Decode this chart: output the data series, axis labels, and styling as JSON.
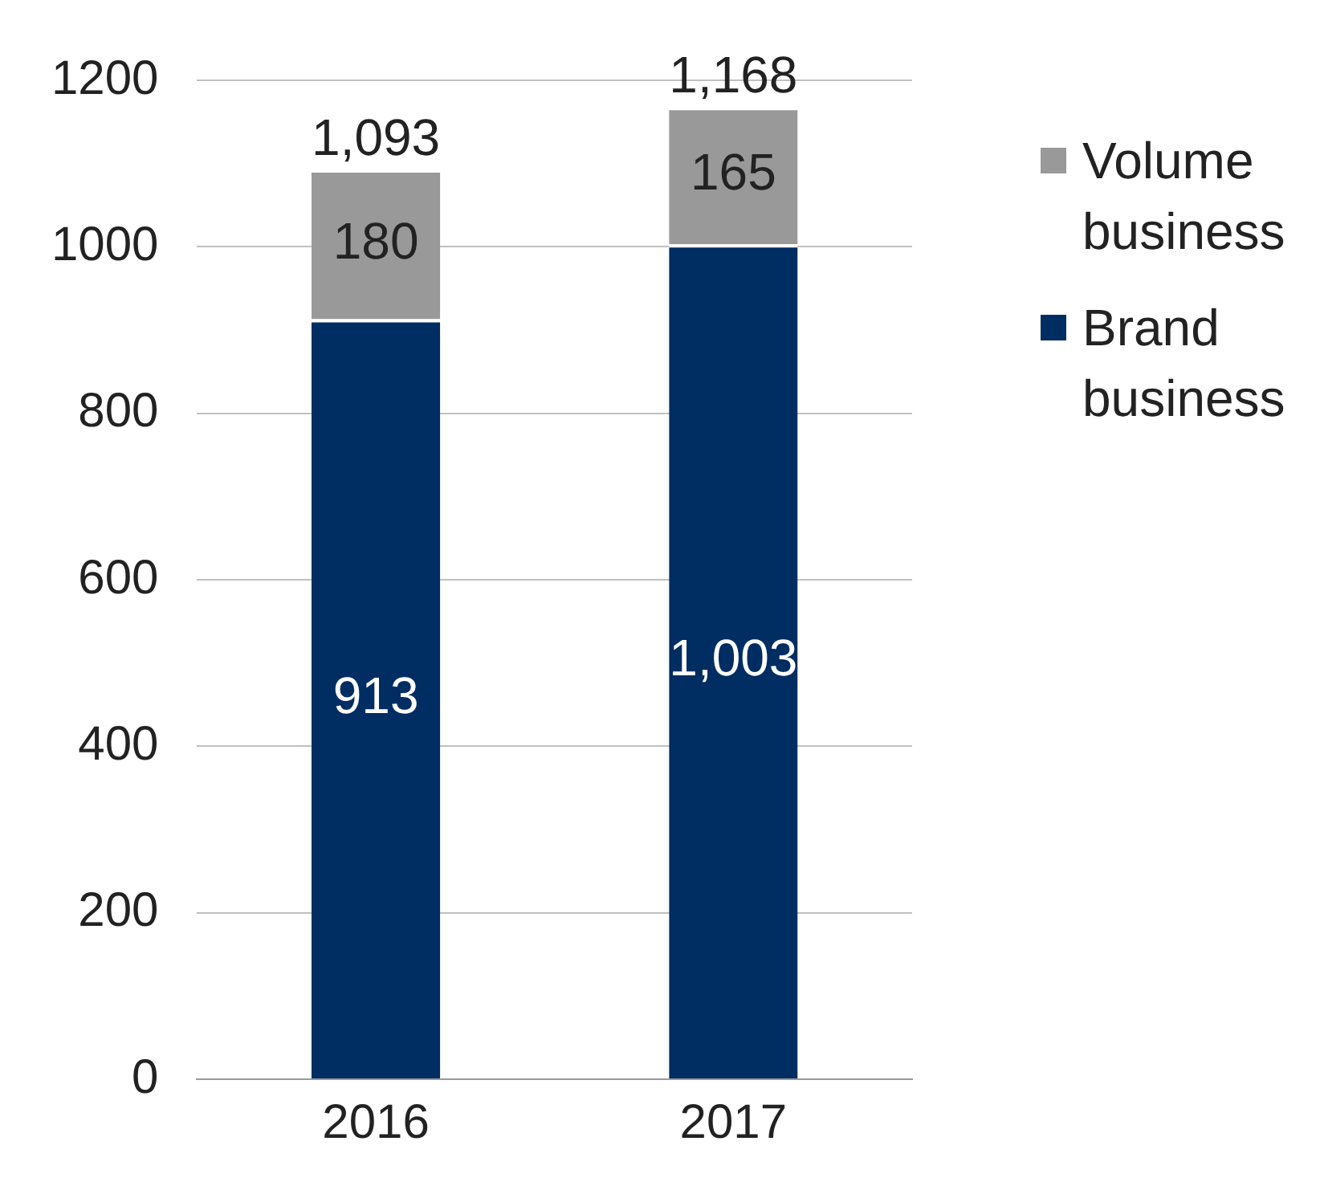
{
  "chart_data": {
    "type": "bar",
    "stacked": true,
    "categories": [
      "2016",
      "2017"
    ],
    "series": [
      {
        "name": "Brand business",
        "color": "#002d62",
        "values": [
          913,
          1003
        ],
        "value_labels": [
          "913",
          "1,003"
        ]
      },
      {
        "name": "Volume business",
        "color": "#999999",
        "values": [
          180,
          165
        ],
        "value_labels": [
          "180",
          "165"
        ]
      }
    ],
    "totals": [
      "1,093",
      "1,168"
    ],
    "ylim": [
      0,
      1200
    ],
    "yticks": [
      0,
      200,
      400,
      600,
      800,
      1000,
      1200
    ],
    "grid": "y",
    "legend": "right"
  }
}
